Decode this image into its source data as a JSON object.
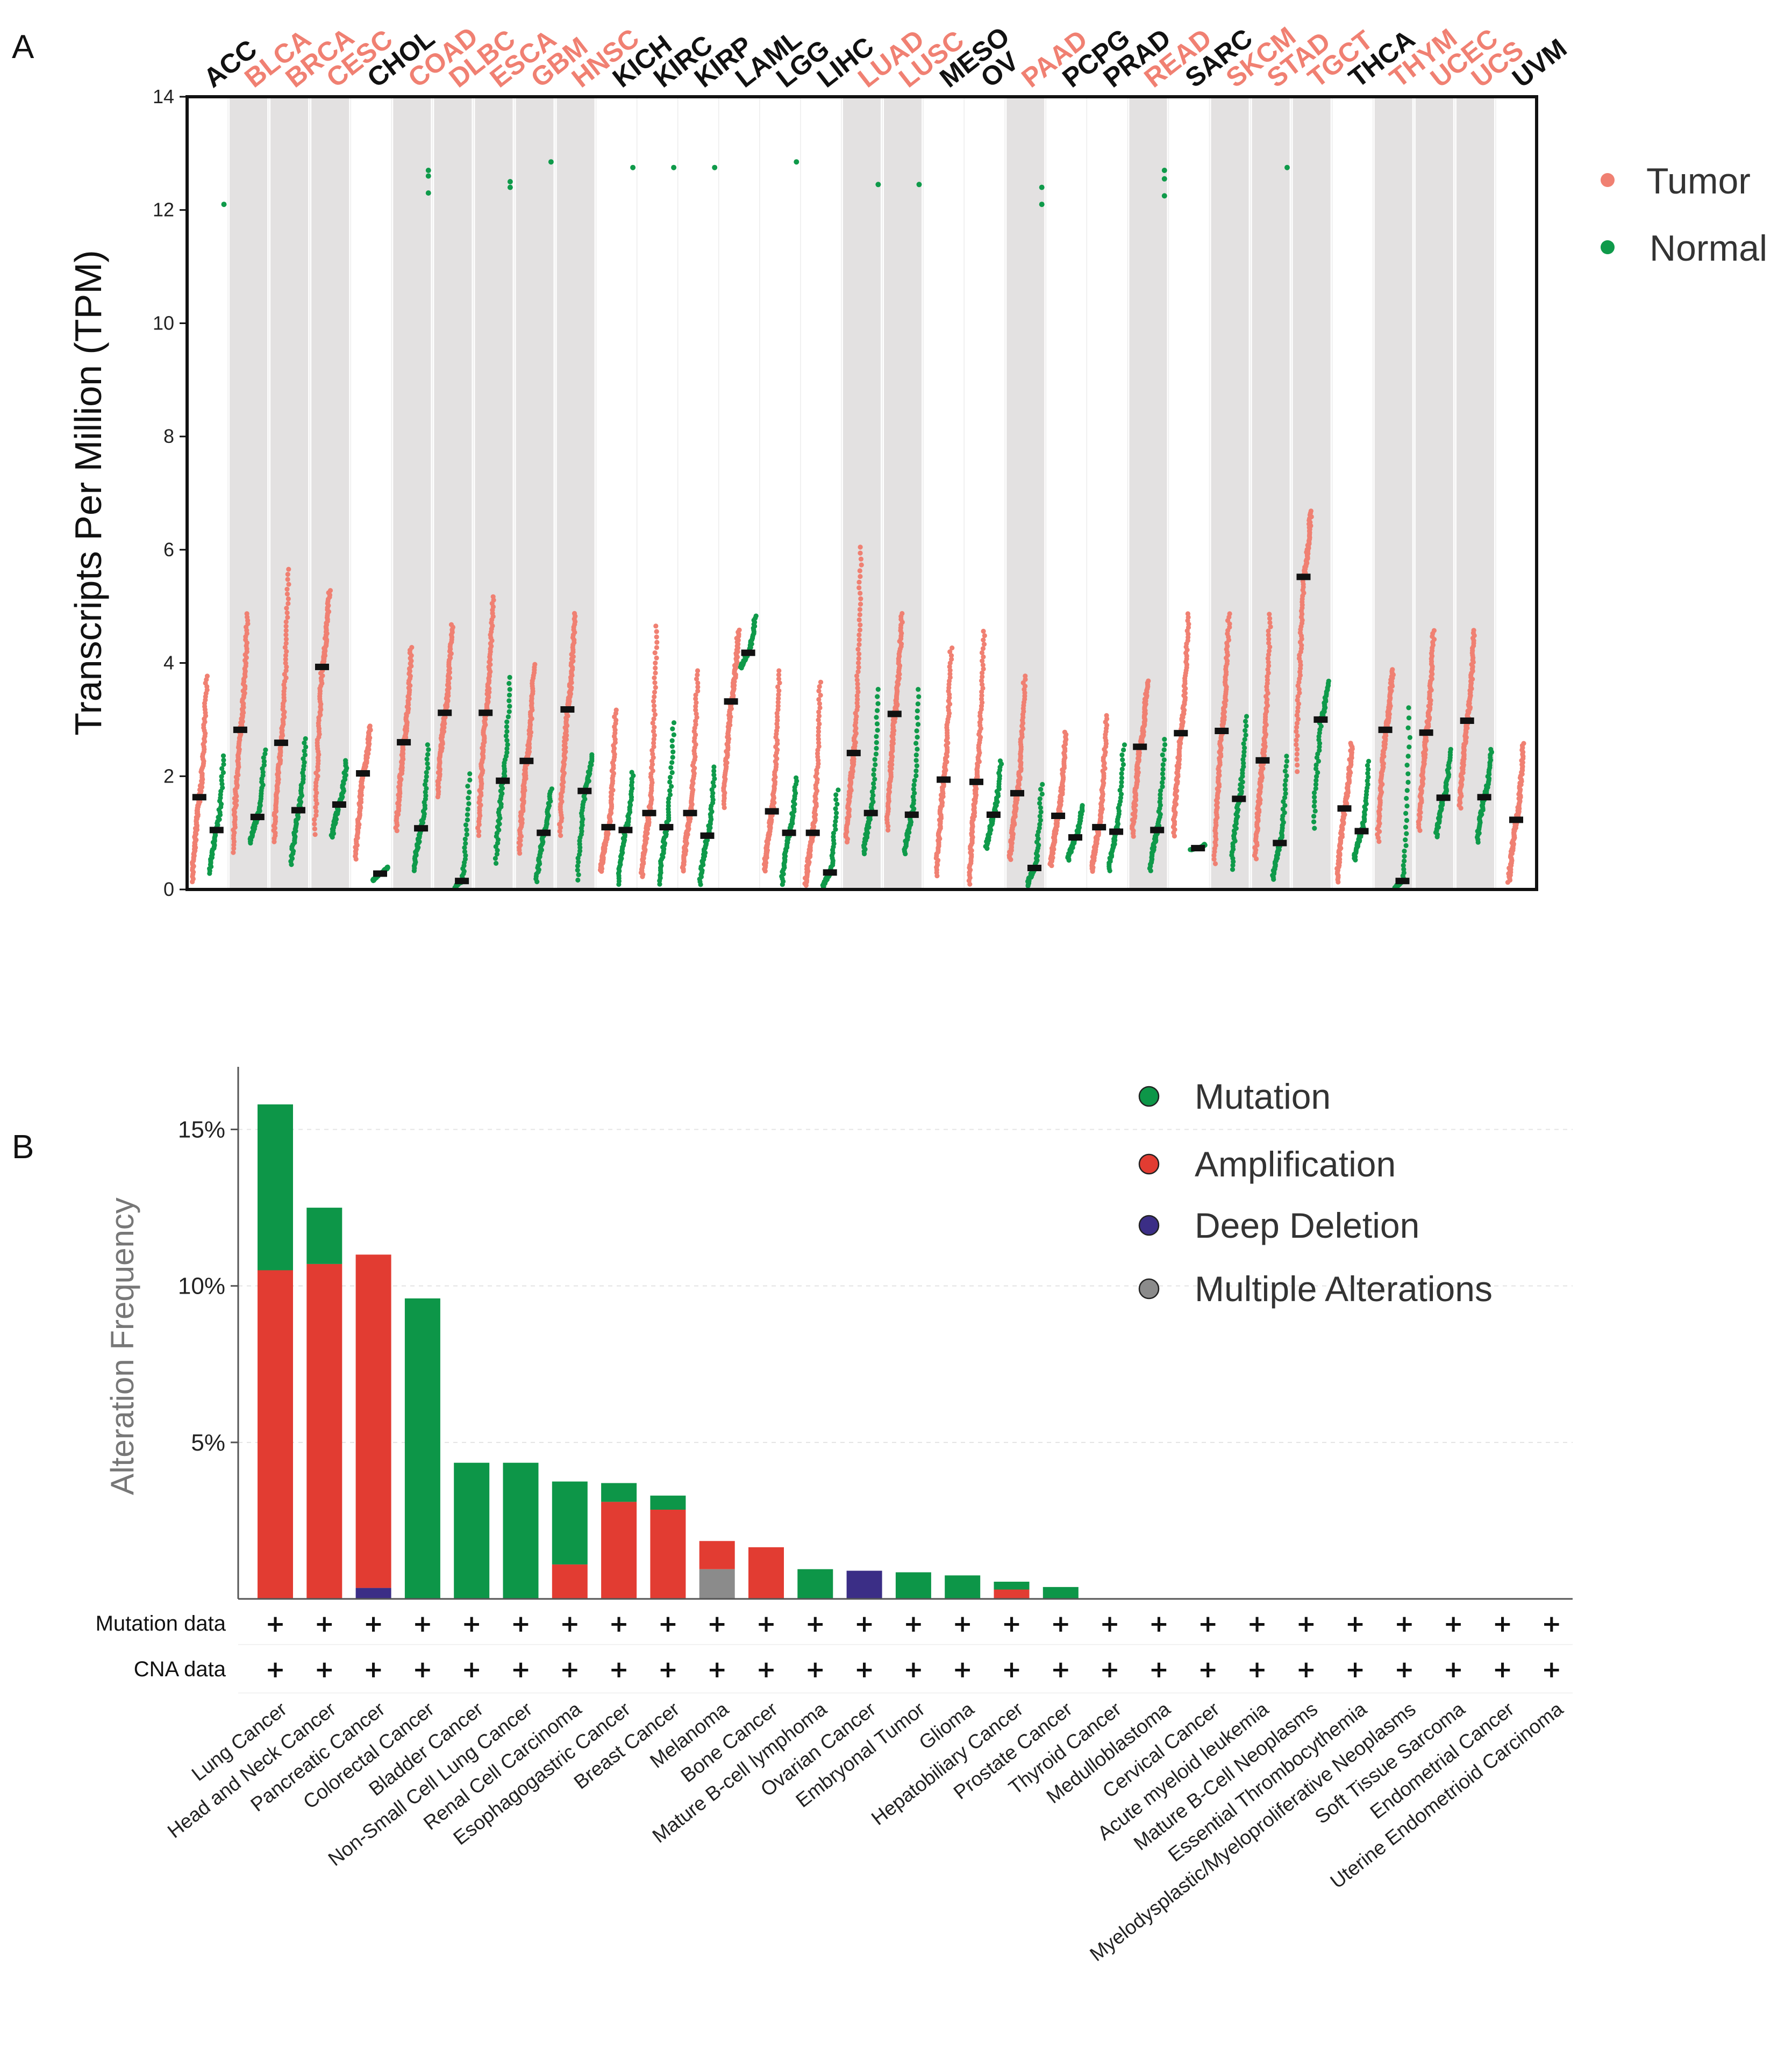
{
  "panels": {
    "a": "A",
    "b": "B"
  },
  "chart_data": [
    {
      "type": "scatter",
      "title": "",
      "ylabel": "Transcripts Per Million (TPM)",
      "ylim": [
        0,
        14
      ],
      "yticks": [
        0,
        2,
        4,
        6,
        8,
        10,
        12,
        14
      ],
      "legend": {
        "position": "right",
        "entries": [
          {
            "name": "Tumor",
            "color": "#f08072"
          },
          {
            "name": "Normal",
            "color": "#0f9a4a"
          }
        ]
      },
      "cancers": [
        {
          "label": "ACC",
          "highlight": false,
          "tumor_median": 1.63,
          "normal_median": 1.05,
          "tumor_range": [
            0.1,
            3.8
          ],
          "normal_range": [
            0.25,
            2.4
          ],
          "normal_outliers": [
            12.1
          ]
        },
        {
          "label": "BLCA",
          "highlight": true,
          "tumor_median": 2.82,
          "normal_median": 1.28,
          "tumor_range": [
            0.6,
            4.9
          ],
          "normal_range": [
            0.8,
            2.5
          ],
          "normal_outliers": []
        },
        {
          "label": "BRCA",
          "highlight": true,
          "tumor_median": 2.59,
          "normal_median": 1.4,
          "tumor_range": [
            0.8,
            5.7
          ],
          "normal_range": [
            0.4,
            2.7
          ],
          "normal_outliers": []
        },
        {
          "label": "CESC",
          "highlight": true,
          "tumor_median": 3.93,
          "normal_median": 1.5,
          "tumor_range": [
            0.9,
            5.3
          ],
          "normal_range": [
            0.9,
            2.3
          ],
          "normal_outliers": []
        },
        {
          "label": "CHOL",
          "highlight": false,
          "tumor_median": 2.05,
          "normal_median": 0.28,
          "tumor_range": [
            0.5,
            2.9
          ],
          "normal_range": [
            0.15,
            0.4
          ],
          "normal_outliers": []
        },
        {
          "label": "COAD",
          "highlight": true,
          "tumor_median": 2.6,
          "normal_median": 1.08,
          "tumor_range": [
            1.0,
            4.3
          ],
          "normal_range": [
            0.3,
            2.6
          ],
          "normal_outliers": [
            12.7,
            12.6,
            12.3
          ]
        },
        {
          "label": "DLBC",
          "highlight": true,
          "tumor_median": 3.12,
          "normal_median": 0.15,
          "tumor_range": [
            1.6,
            4.7
          ],
          "normal_range": [
            0.02,
            2.1
          ],
          "normal_outliers": []
        },
        {
          "label": "ESCA",
          "highlight": true,
          "tumor_median": 3.12,
          "normal_median": 1.92,
          "tumor_range": [
            0.9,
            5.2
          ],
          "normal_range": [
            0.4,
            3.8
          ],
          "normal_outliers": [
            12.5,
            12.4
          ]
        },
        {
          "label": "GBM",
          "highlight": true,
          "tumor_median": 2.27,
          "normal_median": 1.0,
          "tumor_range": [
            0.6,
            4.0
          ],
          "normal_range": [
            0.1,
            1.8
          ],
          "normal_outliers": [
            12.85
          ]
        },
        {
          "label": "HNSC",
          "highlight": true,
          "tumor_median": 3.18,
          "normal_median": 1.74,
          "tumor_range": [
            0.9,
            4.9
          ],
          "normal_range": [
            0.1,
            2.4
          ],
          "normal_outliers": []
        },
        {
          "label": "KICH",
          "highlight": false,
          "tumor_median": 1.1,
          "normal_median": 1.05,
          "tumor_range": [
            0.3,
            3.2
          ],
          "normal_range": [
            0.05,
            2.1
          ],
          "normal_outliers": [
            12.75
          ]
        },
        {
          "label": "KIRC",
          "highlight": false,
          "tumor_median": 1.35,
          "normal_median": 1.1,
          "tumor_range": [
            0.2,
            4.7
          ],
          "normal_range": [
            0.05,
            3.0
          ],
          "normal_outliers": [
            12.75
          ]
        },
        {
          "label": "KIRP",
          "highlight": false,
          "tumor_median": 1.35,
          "normal_median": 0.95,
          "tumor_range": [
            0.3,
            3.9
          ],
          "normal_range": [
            0.05,
            2.2
          ],
          "normal_outliers": [
            12.75
          ]
        },
        {
          "label": "LAML",
          "highlight": false,
          "tumor_median": 3.32,
          "normal_median": 4.18,
          "tumor_range": [
            1.4,
            4.6
          ],
          "normal_range": [
            3.9,
            4.85
          ],
          "normal_outliers": []
        },
        {
          "label": "LGG",
          "highlight": false,
          "tumor_median": 1.38,
          "normal_median": 1.0,
          "tumor_range": [
            0.3,
            3.9
          ],
          "normal_range": [
            0.05,
            2.0
          ],
          "normal_outliers": [
            12.85
          ]
        },
        {
          "label": "LIHC",
          "highlight": false,
          "tumor_median": 1.0,
          "normal_median": 0.3,
          "tumor_range": [
            0.05,
            3.7
          ],
          "normal_range": [
            0.02,
            1.8
          ],
          "normal_outliers": []
        },
        {
          "label": "LUAD",
          "highlight": true,
          "tumor_median": 2.41,
          "normal_median": 1.35,
          "tumor_range": [
            0.8,
            6.1
          ],
          "normal_range": [
            0.6,
            3.6
          ],
          "normal_outliers": [
            12.45
          ]
        },
        {
          "label": "LUSC",
          "highlight": true,
          "tumor_median": 3.1,
          "normal_median": 1.32,
          "tumor_range": [
            1.0,
            4.9
          ],
          "normal_range": [
            0.6,
            3.6
          ],
          "normal_outliers": [
            12.45
          ]
        },
        {
          "label": "MESO",
          "highlight": false,
          "tumor_median": 1.94,
          "normal_median": null,
          "tumor_range": [
            0.2,
            4.3
          ],
          "normal_range": null,
          "normal_outliers": []
        },
        {
          "label": "OV",
          "highlight": false,
          "tumor_median": 1.9,
          "normal_median": 1.32,
          "tumor_range": [
            0.05,
            4.6
          ],
          "normal_range": [
            0.7,
            2.3
          ],
          "normal_outliers": []
        },
        {
          "label": "PAAD",
          "highlight": true,
          "tumor_median": 1.7,
          "normal_median": 0.38,
          "tumor_range": [
            0.5,
            3.8
          ],
          "normal_range": [
            0.05,
            1.9
          ],
          "normal_outliers": [
            12.4,
            12.1
          ]
        },
        {
          "label": "PCPG",
          "highlight": false,
          "tumor_median": 1.3,
          "normal_median": 0.92,
          "tumor_range": [
            0.4,
            2.8
          ],
          "normal_range": [
            0.5,
            1.5
          ],
          "normal_outliers": []
        },
        {
          "label": "PRAD",
          "highlight": false,
          "tumor_median": 1.1,
          "normal_median": 1.02,
          "tumor_range": [
            0.3,
            3.1
          ],
          "normal_range": [
            0.3,
            2.6
          ],
          "normal_outliers": []
        },
        {
          "label": "READ",
          "highlight": true,
          "tumor_median": 2.52,
          "normal_median": 1.05,
          "tumor_range": [
            0.9,
            3.7
          ],
          "normal_range": [
            0.3,
            2.7
          ],
          "normal_outliers": [
            12.7,
            12.55,
            12.25
          ]
        },
        {
          "label": "SARC",
          "highlight": false,
          "tumor_median": 2.76,
          "normal_median": 0.73,
          "tumor_range": [
            0.9,
            4.9
          ],
          "normal_range": [
            0.7,
            0.8
          ],
          "normal_outliers": []
        },
        {
          "label": "SKCM",
          "highlight": true,
          "tumor_median": 2.8,
          "normal_median": 1.6,
          "tumor_range": [
            0.4,
            4.9
          ],
          "normal_range": [
            0.3,
            3.1
          ],
          "normal_outliers": []
        },
        {
          "label": "STAD",
          "highlight": true,
          "tumor_median": 2.28,
          "normal_median": 0.82,
          "tumor_range": [
            0.5,
            4.9
          ],
          "normal_range": [
            0.15,
            2.4
          ],
          "normal_outliers": [
            12.75
          ]
        },
        {
          "label": "TGCT",
          "highlight": true,
          "tumor_median": 5.52,
          "normal_median": 3.0,
          "tumor_range": [
            2.0,
            6.7
          ],
          "normal_range": [
            1.0,
            3.7
          ],
          "normal_outliers": []
        },
        {
          "label": "THCA",
          "highlight": false,
          "tumor_median": 1.43,
          "normal_median": 1.03,
          "tumor_range": [
            0.1,
            2.6
          ],
          "normal_range": [
            0.5,
            2.3
          ],
          "normal_outliers": []
        },
        {
          "label": "THYM",
          "highlight": true,
          "tumor_median": 2.82,
          "normal_median": 0.15,
          "tumor_range": [
            0.8,
            3.9
          ],
          "normal_range": [
            0.02,
            3.3
          ],
          "normal_outliers": []
        },
        {
          "label": "UCEC",
          "highlight": true,
          "tumor_median": 2.77,
          "normal_median": 1.62,
          "tumor_range": [
            1.0,
            4.6
          ],
          "normal_range": [
            0.9,
            2.5
          ],
          "normal_outliers": []
        },
        {
          "label": "UCS",
          "highlight": true,
          "tumor_median": 2.98,
          "normal_median": 1.63,
          "tumor_range": [
            1.4,
            4.6
          ],
          "normal_range": [
            0.8,
            2.5
          ],
          "normal_outliers": []
        },
        {
          "label": "UVM",
          "highlight": false,
          "tumor_median": 1.23,
          "normal_median": null,
          "tumor_range": [
            0.1,
            2.6
          ],
          "normal_range": null,
          "normal_outliers": []
        }
      ]
    },
    {
      "type": "bar",
      "title": "",
      "ylabel": "Alteration Frequency",
      "xlabel": "",
      "ylim": [
        0,
        17
      ],
      "yticks": [
        {
          "value": 5,
          "label": "5%"
        },
        {
          "value": 10,
          "label": "10%"
        },
        {
          "value": 15,
          "label": "15%"
        }
      ],
      "legend": {
        "position": "top-right"
      },
      "series": [
        {
          "name": "Mutation",
          "color": "#0d9648"
        },
        {
          "name": "Amplification",
          "color": "#e23c32"
        },
        {
          "name": "Deep Deletion",
          "color": "#3b2e86"
        },
        {
          "name": "Multiple Alterations",
          "color": "#8b8b8b"
        }
      ],
      "categories": [
        "Lung Cancer",
        "Head and Neck Cancer",
        "Pancreatic Cancer",
        "Colorectal Cancer",
        "Bladder Cancer",
        "Non-Small Cell Lung Cancer",
        "Renal Cell Carcinoma",
        "Esophagogastric Cancer",
        "Breast Cancer",
        "Melanoma",
        "Bone Cancer",
        "Mature B-cell lymphoma",
        "Ovarian Cancer",
        "Embryonal Tumor",
        "Glioma",
        "Hepatobiliary Cancer",
        "Prostate Cancer",
        "Thyroid Cancer",
        "Medulloblastoma",
        "Cervical Cancer",
        "Acute myeloid leukemia",
        "Mature B-Cell Neoplasms",
        "Essential Thrombocythemia",
        "Myelodysplastic/Myeloproliferative Neoplasms",
        "Soft Tissue Sarcoma",
        "Endometrial Cancer",
        "Uterine Endometrioid Carcinoma"
      ],
      "stacks": [
        {
          "Deep Deletion": 0,
          "Multiple Alterations": 0,
          "Amplification": 10.5,
          "Mutation": 5.3
        },
        {
          "Deep Deletion": 0,
          "Multiple Alterations": 0,
          "Amplification": 10.7,
          "Mutation": 1.8
        },
        {
          "Deep Deletion": 0.35,
          "Multiple Alterations": 0,
          "Amplification": 10.65,
          "Mutation": 0
        },
        {
          "Deep Deletion": 0,
          "Multiple Alterations": 0,
          "Amplification": 0,
          "Mutation": 9.6
        },
        {
          "Deep Deletion": 0,
          "Multiple Alterations": 0,
          "Amplification": 0,
          "Mutation": 4.35
        },
        {
          "Deep Deletion": 0,
          "Multiple Alterations": 0,
          "Amplification": 0,
          "Mutation": 4.35
        },
        {
          "Deep Deletion": 0,
          "Multiple Alterations": 0,
          "Amplification": 1.1,
          "Mutation": 2.65
        },
        {
          "Deep Deletion": 0,
          "Multiple Alterations": 0,
          "Amplification": 3.1,
          "Mutation": 0.6
        },
        {
          "Deep Deletion": 0,
          "Multiple Alterations": 0,
          "Amplification": 2.85,
          "Mutation": 0.45
        },
        {
          "Deep Deletion": 0,
          "Multiple Alterations": 0.95,
          "Amplification": 0.9,
          "Mutation": 0
        },
        {
          "Deep Deletion": 0,
          "Multiple Alterations": 0,
          "Amplification": 1.65,
          "Mutation": 0
        },
        {
          "Deep Deletion": 0,
          "Multiple Alterations": 0,
          "Amplification": 0,
          "Mutation": 0.95
        },
        {
          "Deep Deletion": 0.9,
          "Multiple Alterations": 0,
          "Amplification": 0,
          "Mutation": 0
        },
        {
          "Deep Deletion": 0,
          "Multiple Alterations": 0,
          "Amplification": 0,
          "Mutation": 0.85
        },
        {
          "Deep Deletion": 0,
          "Multiple Alterations": 0,
          "Amplification": 0,
          "Mutation": 0.75
        },
        {
          "Deep Deletion": 0,
          "Multiple Alterations": 0,
          "Amplification": 0.3,
          "Mutation": 0.25
        },
        {
          "Deep Deletion": 0,
          "Multiple Alterations": 0,
          "Amplification": 0,
          "Mutation": 0.38
        },
        {
          "Deep Deletion": 0,
          "Multiple Alterations": 0,
          "Amplification": 0,
          "Mutation": 0
        },
        {
          "Deep Deletion": 0,
          "Multiple Alterations": 0,
          "Amplification": 0,
          "Mutation": 0
        },
        {
          "Deep Deletion": 0,
          "Multiple Alterations": 0,
          "Amplification": 0,
          "Mutation": 0
        },
        {
          "Deep Deletion": 0,
          "Multiple Alterations": 0,
          "Amplification": 0,
          "Mutation": 0
        },
        {
          "Deep Deletion": 0,
          "Multiple Alterations": 0,
          "Amplification": 0,
          "Mutation": 0
        },
        {
          "Deep Deletion": 0,
          "Multiple Alterations": 0,
          "Amplification": 0,
          "Mutation": 0
        },
        {
          "Deep Deletion": 0,
          "Multiple Alterations": 0,
          "Amplification": 0,
          "Mutation": 0
        },
        {
          "Deep Deletion": 0,
          "Multiple Alterations": 0,
          "Amplification": 0,
          "Mutation": 0
        },
        {
          "Deep Deletion": 0,
          "Multiple Alterations": 0,
          "Amplification": 0,
          "Mutation": 0
        },
        {
          "Deep Deletion": 0,
          "Multiple Alterations": 0,
          "Amplification": 0,
          "Mutation": 0
        }
      ],
      "annotation_rows": [
        {
          "label": "Mutation data",
          "symbol": "+"
        },
        {
          "label": "CNA data",
          "symbol": "+"
        }
      ]
    }
  ],
  "colors": {
    "highlight_label": "#f08072",
    "normal_label": "#111111",
    "band": "#e3e1e1"
  }
}
